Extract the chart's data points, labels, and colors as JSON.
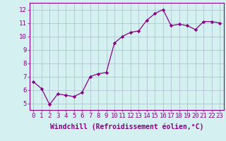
{
  "x": [
    0,
    1,
    2,
    3,
    4,
    5,
    6,
    7,
    8,
    9,
    10,
    11,
    12,
    13,
    14,
    15,
    16,
    17,
    18,
    19,
    20,
    21,
    22,
    23
  ],
  "y": [
    6.6,
    6.1,
    4.9,
    5.7,
    5.6,
    5.5,
    5.8,
    7.0,
    7.2,
    7.3,
    9.5,
    10.0,
    10.3,
    10.4,
    11.2,
    11.7,
    12.0,
    10.8,
    10.9,
    10.8,
    10.5,
    11.1,
    11.1,
    11.0
  ],
  "line_color": "#880088",
  "marker_color": "#880088",
  "bg_color": "#d5f0f0",
  "grid_color": "#aabbcc",
  "xlabel": "Windchill (Refroidissement éolien,°C)",
  "xlim": [
    -0.5,
    23.5
  ],
  "ylim": [
    4.5,
    12.5
  ],
  "yticks": [
    5,
    6,
    7,
    8,
    9,
    10,
    11,
    12
  ],
  "xticks": [
    0,
    1,
    2,
    3,
    4,
    5,
    6,
    7,
    8,
    9,
    10,
    11,
    12,
    13,
    14,
    15,
    16,
    17,
    18,
    19,
    20,
    21,
    22,
    23
  ],
  "tick_fontsize": 6.5,
  "xlabel_fontsize": 7.0
}
